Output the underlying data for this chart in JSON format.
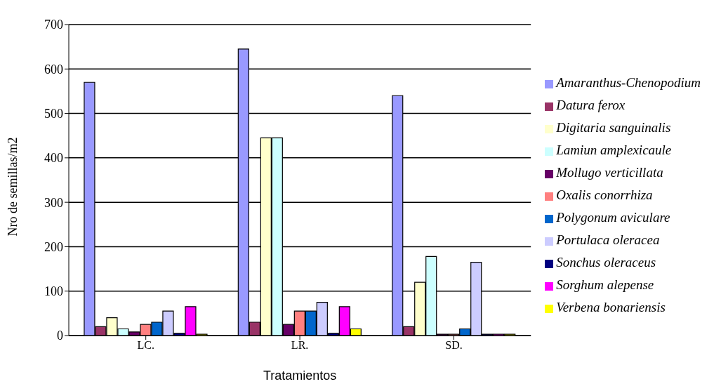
{
  "chart_data": {
    "type": "bar",
    "xlabel": "Tratamientos",
    "ylabel": "Nro de semillas/m2",
    "categories": [
      "LC.",
      "LR.",
      "SD."
    ],
    "series": [
      {
        "name": "Amaranthus-Chenopodium",
        "color": "#9999ff",
        "values": [
          570,
          645,
          540
        ]
      },
      {
        "name": "Datura ferox",
        "color": "#993366",
        "values": [
          20,
          30,
          20
        ]
      },
      {
        "name": "Digitaria sanguinalis",
        "color": "#ffffcc",
        "values": [
          40,
          445,
          120
        ]
      },
      {
        "name": "Lamiun amplexicaule",
        "color": "#ccffff",
        "values": [
          15,
          445,
          178
        ]
      },
      {
        "name": "Mollugo verticillata",
        "color": "#660066",
        "values": [
          8,
          25,
          3
        ]
      },
      {
        "name": "Oxalis conorrhiza",
        "color": "#ff8080",
        "values": [
          25,
          55,
          3
        ]
      },
      {
        "name": "Polygonum aviculare",
        "color": "#0066cc",
        "values": [
          30,
          55,
          15
        ]
      },
      {
        "name": "Portulaca oleracea",
        "color": "#ccccff",
        "values": [
          55,
          75,
          165
        ]
      },
      {
        "name": "Sonchus oleraceus",
        "color": "#000080",
        "values": [
          5,
          5,
          3
        ]
      },
      {
        "name": "Sorghum alepense",
        "color": "#ff00ff",
        "values": [
          65,
          65,
          3
        ]
      },
      {
        "name": "Verbena bonariensis",
        "color": "#ffff00",
        "values": [
          3,
          15,
          3
        ]
      }
    ],
    "ylim": [
      0,
      700
    ],
    "yticks": [
      0,
      100,
      200,
      300,
      400,
      500,
      600,
      700
    ],
    "grid": "y",
    "legend": "right"
  }
}
